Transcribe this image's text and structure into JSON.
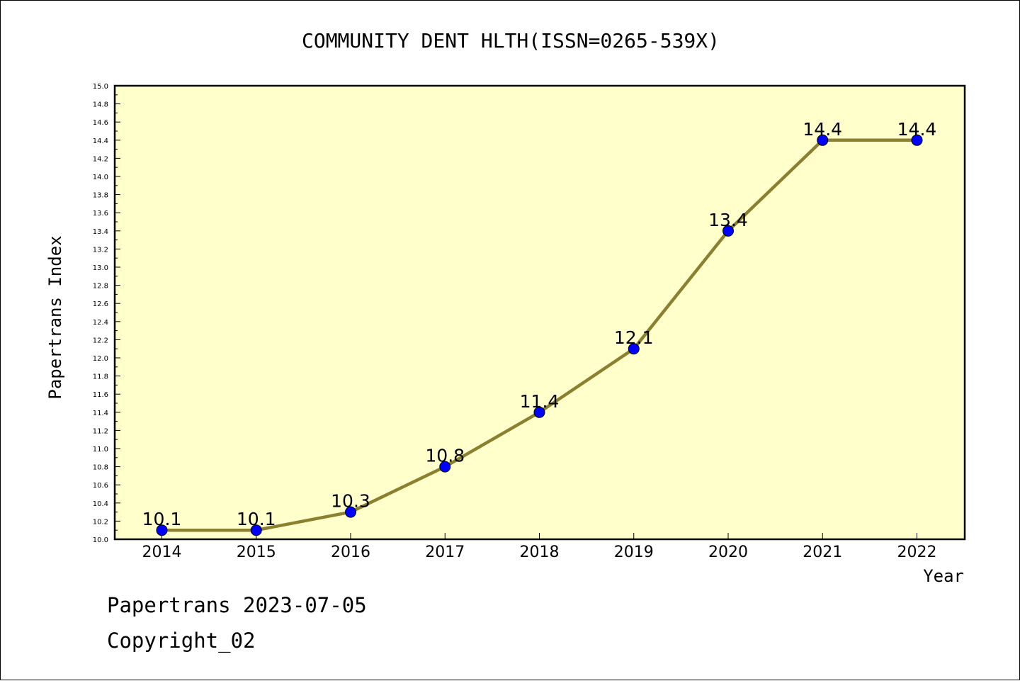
{
  "chart_data": {
    "type": "line",
    "title": "COMMUNITY DENT HLTH(ISSN=0265-539X)",
    "xlabel": "Year",
    "ylabel": "Papertrans Index",
    "categories": [
      "2014",
      "2015",
      "2016",
      "2017",
      "2018",
      "2019",
      "2020",
      "2021",
      "2022"
    ],
    "series": [
      {
        "values": [
          10.1,
          10.1,
          10.3,
          10.8,
          11.4,
          12.1,
          13.4,
          14.4,
          14.4
        ]
      }
    ],
    "data_labels": [
      "10.1",
      "10.1",
      "10.3",
      "10.8",
      "11.4",
      "12.1",
      "13.4",
      "14.4",
      "14.4"
    ],
    "ylim": [
      10.0,
      15.0
    ],
    "yticks": [
      "10.0",
      "10.2",
      "10.4",
      "10.6",
      "10.8",
      "11.0",
      "11.2",
      "11.4",
      "11.6",
      "11.8",
      "12.0",
      "12.2",
      "12.4",
      "12.6",
      "12.8",
      "13.0",
      "13.2",
      "13.4",
      "13.6",
      "13.8",
      "14.0",
      "14.2",
      "14.4",
      "14.6",
      "14.8",
      "15.0"
    ],
    "grid": false,
    "colors": {
      "plot_bg": "#ffffcc",
      "line": "#8b8030",
      "marker": "#0000ff"
    }
  },
  "footer": {
    "line1": "Papertrans 2023-07-05",
    "line2": "Copyright_02"
  }
}
